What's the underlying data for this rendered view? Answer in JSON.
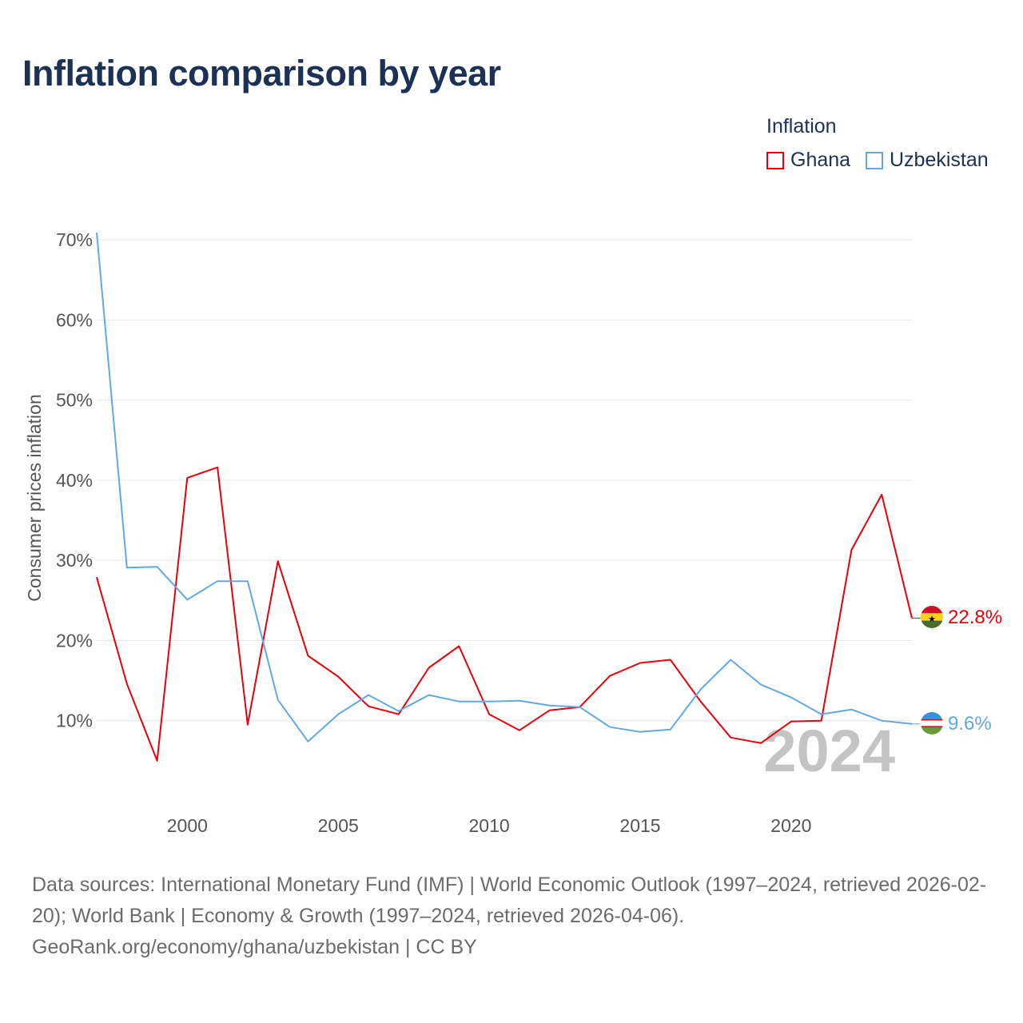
{
  "title": "Inflation comparison by year",
  "legend": {
    "title": "Inflation",
    "items": [
      {
        "label": "Ghana",
        "color": "#e8000b"
      },
      {
        "label": "Uzbekistan",
        "color": "#62a8e5"
      }
    ]
  },
  "footer": {
    "sources": "Data sources: International Monetary Fund (IMF) | World Economic Outlook (1997–2024, retrieved 2026-02-20); World Bank | Economy & Growth (1997–2024, retrieved 2026-04-06).",
    "attribution": "GeoRank.org/economy/ghana/uzbekistan | CC BY"
  },
  "chart_data": {
    "type": "line",
    "title": "Inflation comparison by year",
    "xlabel": "",
    "ylabel": "Consumer prices inflation",
    "xlim": [
      1997,
      2024
    ],
    "ylim": [
      0,
      72
    ],
    "x_ticks": [
      2000,
      2005,
      2010,
      2015,
      2020
    ],
    "y_ticks": [
      10,
      20,
      30,
      40,
      50,
      60,
      70
    ],
    "y_tick_labels": [
      "10%",
      "20%",
      "30%",
      "40%",
      "50%",
      "60%",
      "70%"
    ],
    "grid": true,
    "legend_position": "top-right",
    "watermark_year": "2024",
    "x": [
      1997,
      1998,
      1999,
      2000,
      2001,
      2002,
      2003,
      2004,
      2005,
      2006,
      2007,
      2008,
      2009,
      2010,
      2011,
      2012,
      2013,
      2014,
      2015,
      2016,
      2017,
      2018,
      2019,
      2020,
      2021,
      2022,
      2023,
      2024
    ],
    "series": [
      {
        "name": "Ghana",
        "color": "#e8000b",
        "end_label": "22.8%",
        "values": [
          27.9,
          14.6,
          5.0,
          40.3,
          41.6,
          9.5,
          29.9,
          18.1,
          15.5,
          11.8,
          10.8,
          16.6,
          19.3,
          10.8,
          8.8,
          11.3,
          11.7,
          15.6,
          17.2,
          17.6,
          12.4,
          7.9,
          7.2,
          9.9,
          10.0,
          31.3,
          38.2,
          22.8
        ]
      },
      {
        "name": "Uzbekistan",
        "color": "#62a8e5",
        "end_label": "9.6%",
        "values": [
          70.9,
          29.1,
          29.2,
          25.1,
          27.4,
          27.4,
          12.6,
          7.4,
          10.8,
          13.2,
          11.2,
          13.2,
          12.4,
          12.4,
          12.5,
          11.9,
          11.7,
          9.2,
          8.6,
          8.9,
          13.9,
          17.6,
          14.5,
          12.9,
          10.8,
          11.4,
          10.0,
          9.6
        ]
      }
    ]
  }
}
